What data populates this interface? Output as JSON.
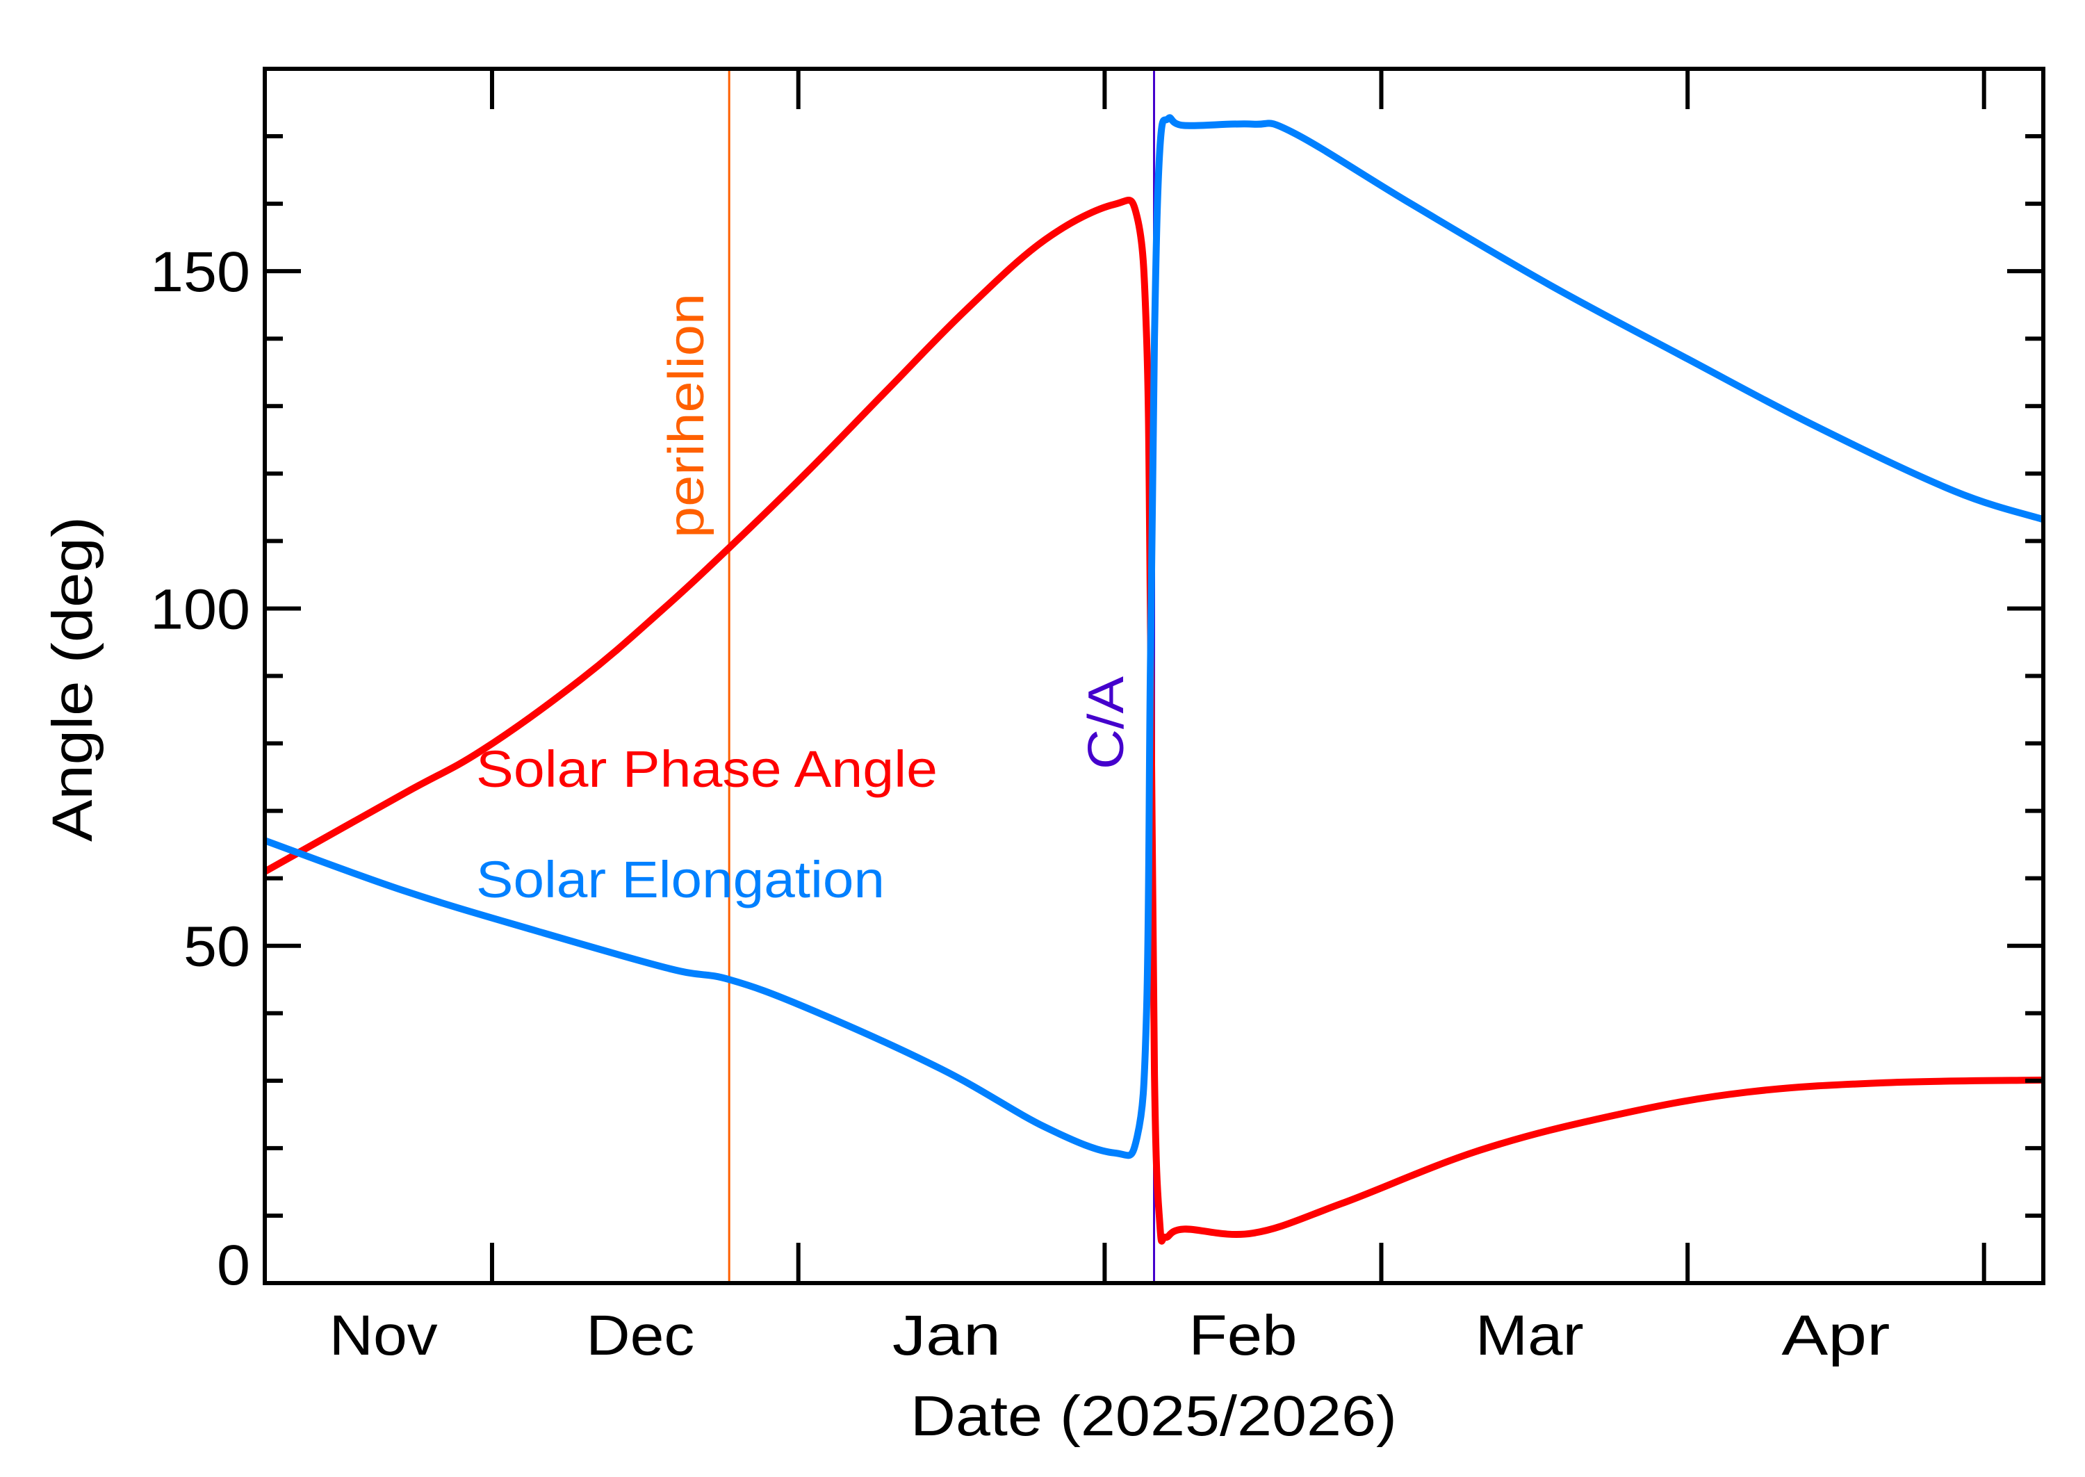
{
  "chart_data": {
    "type": "line",
    "xlabel": "Date (2025/2026)",
    "ylabel": "Angle (deg)",
    "xlim": [
      "2025-11-08",
      "2026-05-07"
    ],
    "ylim": [
      0,
      180
    ],
    "x_tick_labels": [
      "Nov",
      "Dec",
      "Jan",
      "Feb",
      "Mar",
      "Apr"
    ],
    "x_major_ticks": [
      "2025-12-01",
      "2026-01-01",
      "2026-02-01",
      "2026-03-01",
      "2026-04-01",
      "2026-05-01"
    ],
    "x_label_dates": [
      "2025-11-20",
      "2025-12-16",
      "2026-01-16",
      "2026-02-15",
      "2026-03-16",
      "2026-04-16"
    ],
    "y_tick_labels": [
      "0",
      "50",
      "100",
      "150"
    ],
    "y_tick_values": [
      0,
      50,
      100,
      150
    ],
    "y_minor_step": 10,
    "grid": false,
    "series": [
      {
        "name": "Solar Phase Angle",
        "color": "#ff0000",
        "x": [
          "2025-11-08",
          "2025-11-22",
          "2025-11-30",
          "2025-12-10",
          "2025-12-18",
          "2025-12-25",
          "2026-01-02",
          "2026-01-10",
          "2026-01-18",
          "2026-01-26",
          "2026-02-01T23:00",
          "2026-02-04T07:00",
          "2026-02-05T06:00",
          "2026-02-05T15:00",
          "2026-02-06T01:00",
          "2026-02-06T14:00",
          "2026-02-07T04:00",
          "2026-02-09T01:00",
          "2026-02-16",
          "2026-02-25",
          "2026-03-11",
          "2026-03-25",
          "2026-04-07",
          "2026-04-21",
          "2026-05-07"
        ],
        "y": [
          61,
          72.5,
          79,
          89.5,
          99.5,
          109,
          120.4,
          132.4,
          144.3,
          154.7,
          159.9,
          158,
          140,
          100,
          31,
          8.8,
          6.8,
          8,
          7.4,
          11.8,
          19.7,
          25,
          28.3,
          29.7,
          30.1
        ]
      },
      {
        "name": "Solar Elongation",
        "color": "#0080ff",
        "x": [
          "2025-11-08",
          "2025-11-22",
          "2025-12-05T12:00",
          "2025-12-19",
          "2025-12-25",
          "2026-01-02",
          "2026-01-15T12:00",
          "2026-01-26",
          "2026-02-01T23:00",
          "2026-02-04T07:00",
          "2026-02-05T06:00",
          "2026-02-05T15:00",
          "2026-02-06T01:00",
          "2026-02-06T14:00",
          "2026-02-07T10:00",
          "2026-02-09T01:00",
          "2026-02-16",
          "2026-02-20",
          "2026-03-04",
          "2026-03-18",
          "2026-04-01",
          "2026-04-14",
          "2026-04-28",
          "2026-05-07"
        ],
        "y": [
          65.6,
          58.2,
          52.2,
          46.6,
          45,
          40.7,
          31.7,
          23.1,
          19.3,
          21.7,
          40.7,
          90.5,
          140,
          168,
          172.6,
          171.6,
          171.8,
          170.6,
          160,
          148,
          137,
          127,
          117.4,
          113.2
        ]
      }
    ],
    "annotations": [
      {
        "text": "perihelion",
        "date": "2025-12-25",
        "color": "#ff6000"
      },
      {
        "text": "C/A",
        "date": "2026-02-06",
        "color": "#4400cc"
      }
    ]
  }
}
